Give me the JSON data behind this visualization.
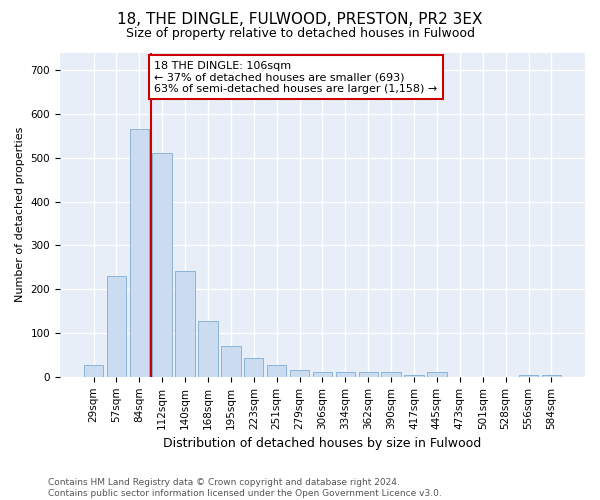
{
  "title1": "18, THE DINGLE, FULWOOD, PRESTON, PR2 3EX",
  "title2": "Size of property relative to detached houses in Fulwood",
  "xlabel": "Distribution of detached houses by size in Fulwood",
  "ylabel": "Number of detached properties",
  "categories": [
    "29sqm",
    "57sqm",
    "84sqm",
    "112sqm",
    "140sqm",
    "168sqm",
    "195sqm",
    "223sqm",
    "251sqm",
    "279sqm",
    "306sqm",
    "334sqm",
    "362sqm",
    "390sqm",
    "417sqm",
    "445sqm",
    "473sqm",
    "501sqm",
    "528sqm",
    "556sqm",
    "584sqm"
  ],
  "values": [
    28,
    230,
    565,
    510,
    242,
    127,
    70,
    42,
    27,
    15,
    10,
    10,
    10,
    10,
    5,
    10,
    0,
    0,
    0,
    5,
    5
  ],
  "bar_color": "#ccdcf0",
  "bar_edge_color": "#8ab4d8",
  "vline_color": "#cc0000",
  "vline_x": 2.5,
  "annotation_text": "18 THE DINGLE: 106sqm\n← 37% of detached houses are smaller (693)\n63% of semi-detached houses are larger (1,158) →",
  "annotation_box_facecolor": "#ffffff",
  "annotation_box_edgecolor": "#cc0000",
  "ylim": [
    0,
    740
  ],
  "yticks": [
    0,
    100,
    200,
    300,
    400,
    500,
    600,
    700
  ],
  "footer1": "Contains HM Land Registry data © Crown copyright and database right 2024.",
  "footer2": "Contains public sector information licensed under the Open Government Licence v3.0.",
  "bg_color": "#ffffff",
  "plot_bg_color": "#e8eef8",
  "grid_color": "#ffffff",
  "title1_fontsize": 11,
  "title2_fontsize": 9,
  "xlabel_fontsize": 9,
  "ylabel_fontsize": 8,
  "tick_fontsize": 7.5,
  "annot_fontsize": 8,
  "footer_fontsize": 6.5
}
